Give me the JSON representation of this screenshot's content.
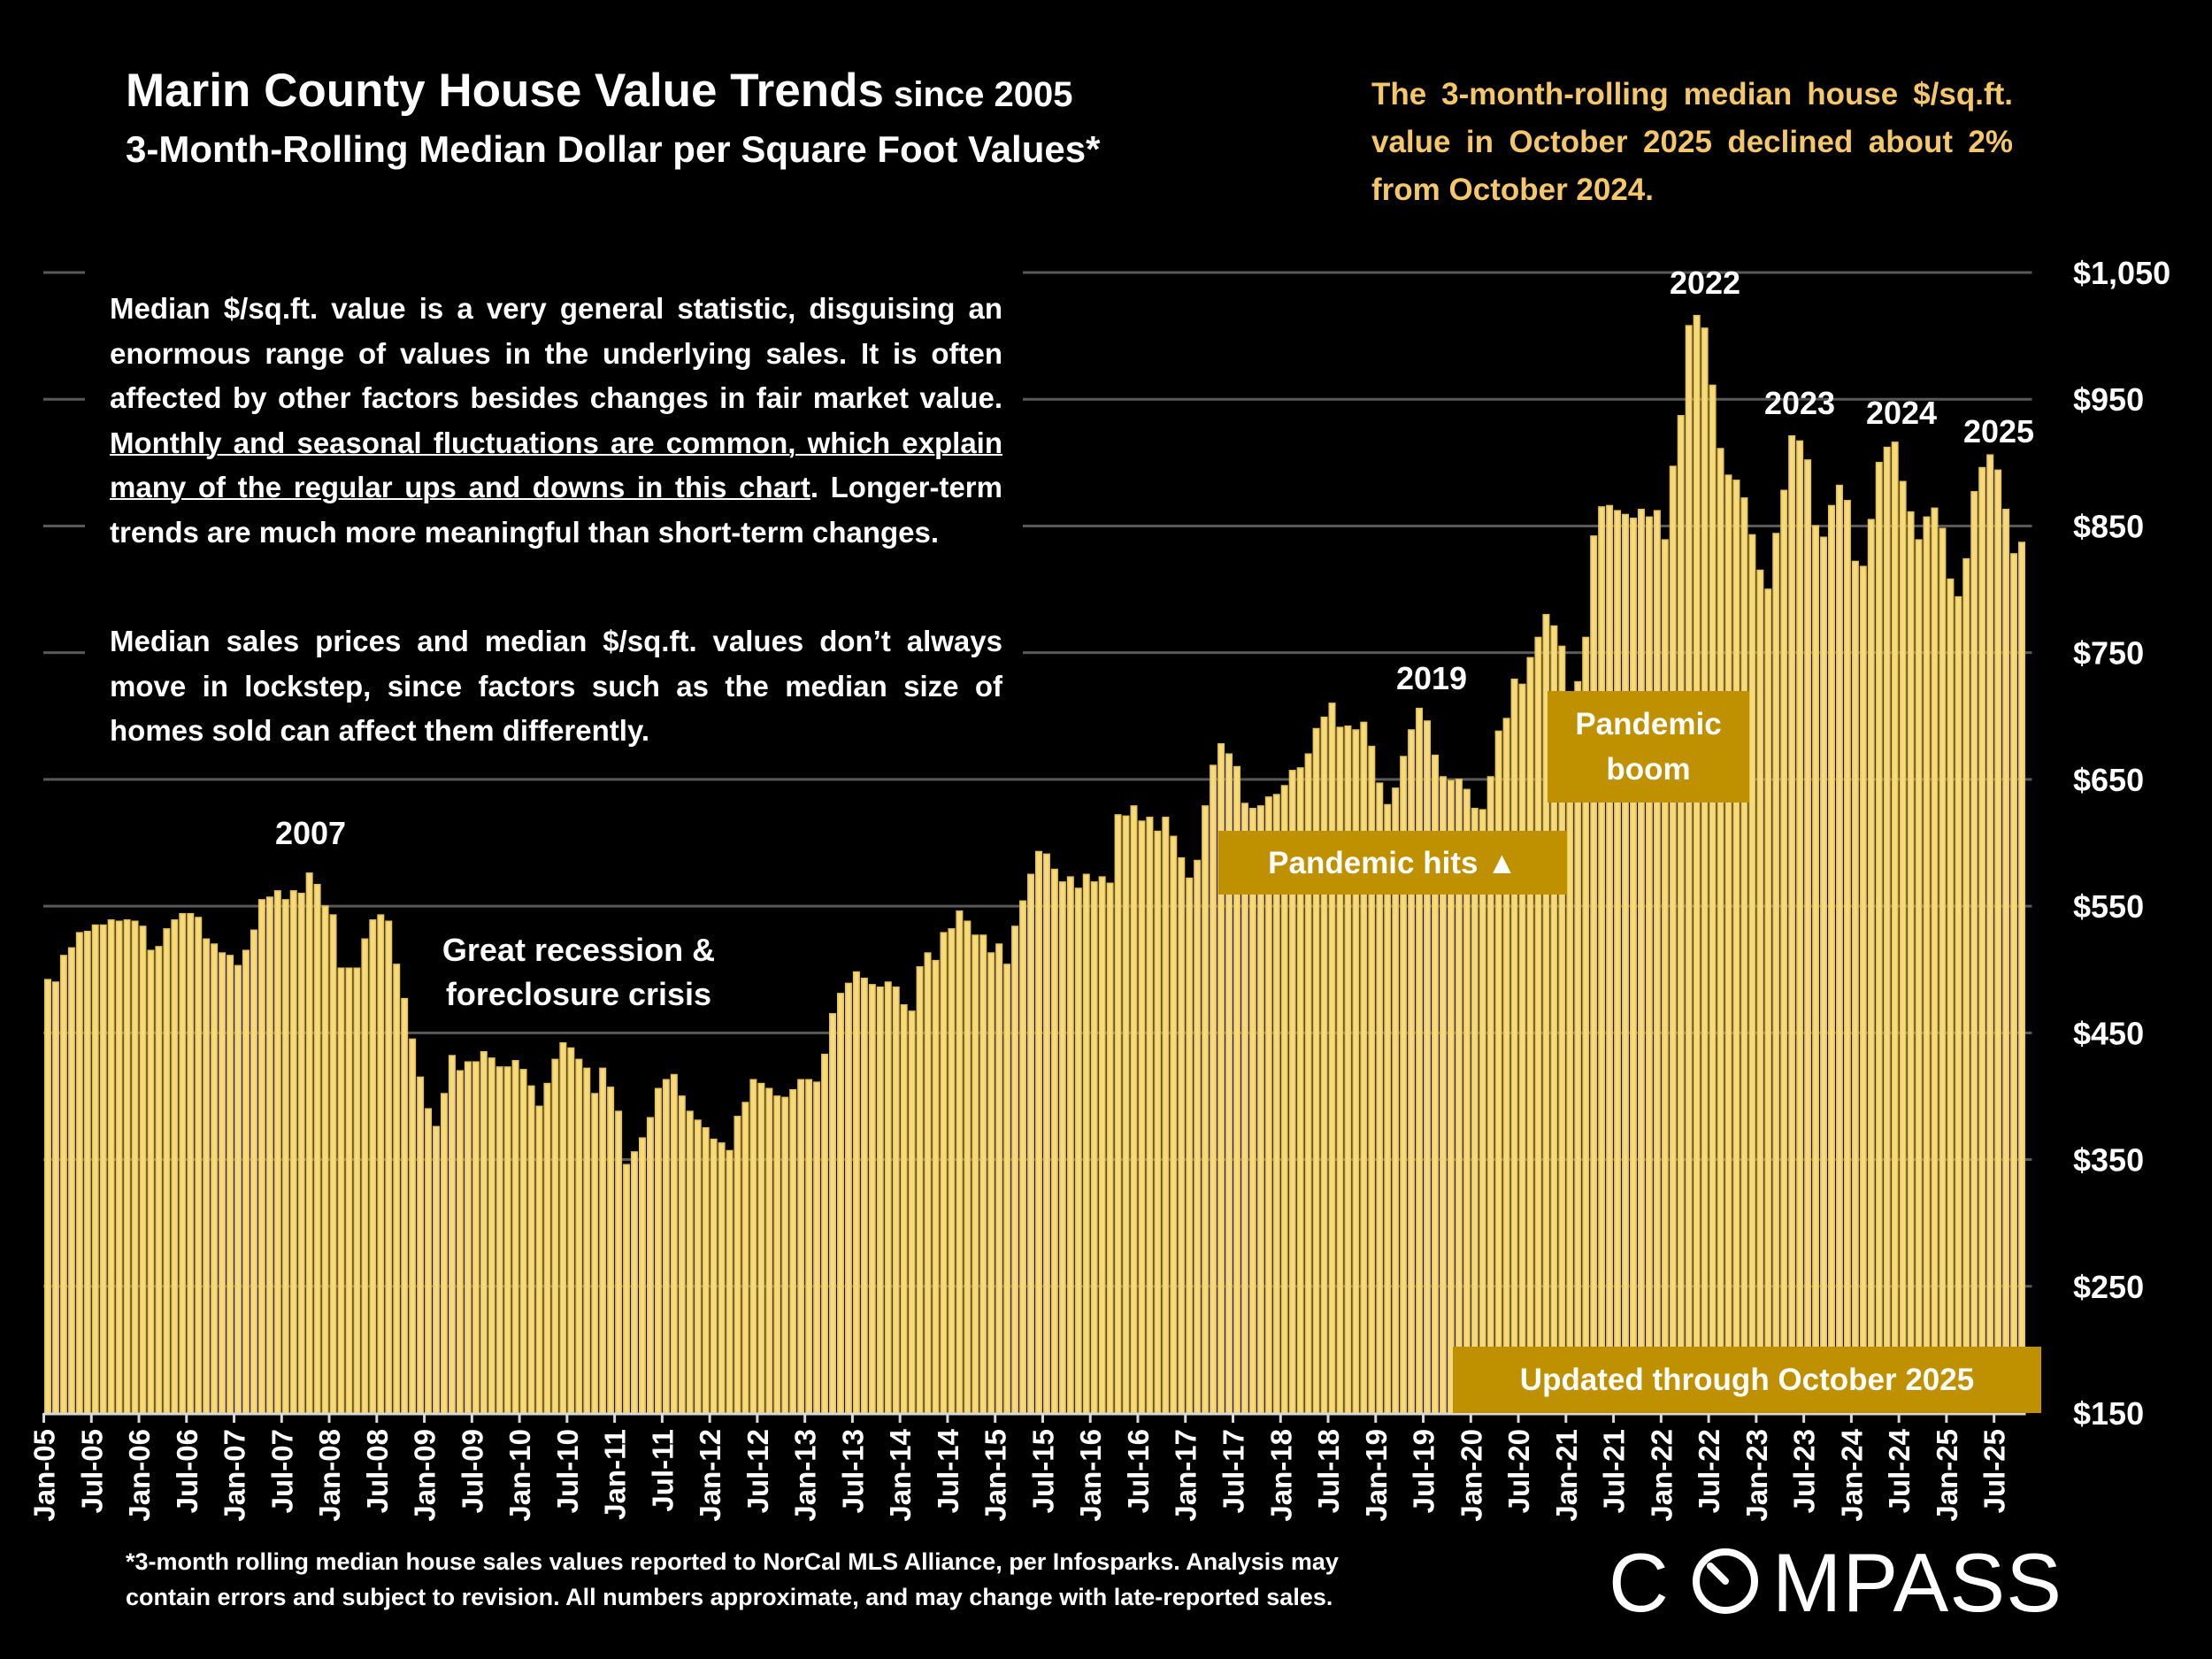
{
  "header": {
    "title_main": "Marin County House Value Trends",
    "title_suffix": " since 2005",
    "subtitle": "3-Month-Rolling Median Dollar per Square Foot Values*",
    "summary": "The 3-month-rolling median house $/sq.ft. value in October 2025 declined about 2% from October 2024."
  },
  "notes": {
    "p1_before": "Median $/sq.ft. value is a very general statistic, disguising an enormous range of values in the underlying sales. It is often affected by other factors besides changes in fair market value. ",
    "p1_underlined": "Monthly and seasonal fluctuations are common, which explain many of the regular ups and downs in this chart",
    "p1_after": ". Longer-term trends are much more meaningful than short-term changes.",
    "p2": "Median sales prices and median $/sq.ft. values don’t always move in lockstep, since factors such as the median size of homes sold can affect them differently."
  },
  "annotations": {
    "y2007": "2007",
    "recession_line1": "Great recession &",
    "recession_line2": "foreclosure crisis",
    "y2019": "2019",
    "y2022": "2022",
    "y2023": "2023",
    "y2024": "2024",
    "y2025": "2025",
    "pandemic_hits": "Pandemic hits ▲",
    "pandemic_boom_line1": "Pandemic",
    "pandemic_boom_line2": "boom",
    "updated": "Updated through October 2025"
  },
  "footnote": {
    "line1": "*3-month rolling median house sales values reported to NorCal MLS Alliance, per Infosparks. Analysis may",
    "line2": "contain errors and subject to revision. All numbers approximate, and may change with late-reported sales."
  },
  "logo": "COMPASS",
  "colors": {
    "background": "#000000",
    "bar_fill": "#f6da7c",
    "bar_stroke": "#e6c45a",
    "annotation_box": "#bf9000",
    "summary_text": "#f4c76b",
    "gridline": "#595959"
  },
  "chart_data": {
    "type": "bar",
    "title": "Marin County House Value Trends since 2005",
    "subtitle": "3-Month-Rolling Median Dollar per Square Foot Values*",
    "xlabel": "",
    "ylabel": "",
    "ylim": [
      150,
      1050
    ],
    "y_ticks": [
      150,
      250,
      350,
      450,
      550,
      650,
      750,
      850,
      950,
      1050
    ],
    "y_tick_labels": [
      "$150",
      "$250",
      "$350",
      "$450",
      "$550",
      "$650",
      "$750",
      "$850",
      "$950",
      "$1,050"
    ],
    "y_axis_position": "right",
    "grid": true,
    "tick_label_every": 6,
    "categories": [
      "Jan-05",
      "Feb-05",
      "Mar-05",
      "Apr-05",
      "May-05",
      "Jun-05",
      "Jul-05",
      "Aug-05",
      "Sep-05",
      "Oct-05",
      "Nov-05",
      "Dec-05",
      "Jan-06",
      "Feb-06",
      "Mar-06",
      "Apr-06",
      "May-06",
      "Jun-06",
      "Jul-06",
      "Aug-06",
      "Sep-06",
      "Oct-06",
      "Nov-06",
      "Dec-06",
      "Jan-07",
      "Feb-07",
      "Mar-07",
      "Apr-07",
      "May-07",
      "Jun-07",
      "Jul-07",
      "Aug-07",
      "Sep-07",
      "Oct-07",
      "Nov-07",
      "Dec-07",
      "Jan-08",
      "Feb-08",
      "Mar-08",
      "Apr-08",
      "May-08",
      "Jun-08",
      "Jul-08",
      "Aug-08",
      "Sep-08",
      "Oct-08",
      "Nov-08",
      "Dec-08",
      "Jan-09",
      "Feb-09",
      "Mar-09",
      "Apr-09",
      "May-09",
      "Jun-09",
      "Jul-09",
      "Aug-09",
      "Sep-09",
      "Oct-09",
      "Nov-09",
      "Dec-09",
      "Jan-10",
      "Feb-10",
      "Mar-10",
      "Apr-10",
      "May-10",
      "Jun-10",
      "Jul-10",
      "Aug-10",
      "Sep-10",
      "Oct-10",
      "Nov-10",
      "Dec-10",
      "Jan-11",
      "Feb-11",
      "Mar-11",
      "Apr-11",
      "May-11",
      "Jun-11",
      "Jul-11",
      "Aug-11",
      "Sep-11",
      "Oct-11",
      "Nov-11",
      "Dec-11",
      "Jan-12",
      "Feb-12",
      "Mar-12",
      "Apr-12",
      "May-12",
      "Jun-12",
      "Jul-12",
      "Aug-12",
      "Sep-12",
      "Oct-12",
      "Nov-12",
      "Dec-12",
      "Jan-13",
      "Feb-13",
      "Mar-13",
      "Apr-13",
      "May-13",
      "Jun-13",
      "Jul-13",
      "Aug-13",
      "Sep-13",
      "Oct-13",
      "Nov-13",
      "Dec-13",
      "Jan-14",
      "Feb-14",
      "Mar-14",
      "Apr-14",
      "May-14",
      "Jun-14",
      "Jul-14",
      "Aug-14",
      "Sep-14",
      "Oct-14",
      "Nov-14",
      "Dec-14",
      "Jan-15",
      "Feb-15",
      "Mar-15",
      "Apr-15",
      "May-15",
      "Jun-15",
      "Jul-15",
      "Aug-15",
      "Sep-15",
      "Oct-15",
      "Nov-15",
      "Dec-15",
      "Jan-16",
      "Feb-16",
      "Mar-16",
      "Apr-16",
      "May-16",
      "Jun-16",
      "Jul-16",
      "Aug-16",
      "Sep-16",
      "Oct-16",
      "Nov-16",
      "Dec-16",
      "Jan-17",
      "Feb-17",
      "Mar-17",
      "Apr-17",
      "May-17",
      "Jun-17",
      "Jul-17",
      "Aug-17",
      "Sep-17",
      "Oct-17",
      "Nov-17",
      "Dec-17",
      "Jan-18",
      "Feb-18",
      "Mar-18",
      "Apr-18",
      "May-18",
      "Jun-18",
      "Jul-18",
      "Aug-18",
      "Sep-18",
      "Oct-18",
      "Nov-18",
      "Dec-18",
      "Jan-19",
      "Feb-19",
      "Mar-19",
      "Apr-19",
      "May-19",
      "Jun-19",
      "Jul-19",
      "Aug-19",
      "Sep-19",
      "Oct-19",
      "Nov-19",
      "Dec-19",
      "Jan-20",
      "Feb-20",
      "Mar-20",
      "Apr-20",
      "May-20",
      "Jun-20",
      "Jul-20",
      "Aug-20",
      "Sep-20",
      "Oct-20",
      "Nov-20",
      "Dec-20",
      "Jan-21",
      "Feb-21",
      "Mar-21",
      "Apr-21",
      "May-21",
      "Jun-21",
      "Jul-21",
      "Aug-21",
      "Sep-21",
      "Oct-21",
      "Nov-21",
      "Dec-21",
      "Jan-22",
      "Feb-22",
      "Mar-22",
      "Apr-22",
      "May-22",
      "Jun-22",
      "Jul-22",
      "Aug-22",
      "Sep-22",
      "Oct-22",
      "Nov-22",
      "Dec-22",
      "Jan-23",
      "Feb-23",
      "Mar-23",
      "Apr-23",
      "May-23",
      "Jun-23",
      "Jul-23",
      "Aug-23",
      "Sep-23",
      "Oct-23",
      "Nov-23",
      "Dec-23",
      "Jan-24",
      "Feb-24",
      "Mar-24",
      "Apr-24",
      "May-24",
      "Jun-24",
      "Jul-24",
      "Aug-24",
      "Sep-24",
      "Oct-24",
      "Nov-24",
      "Dec-24",
      "Jan-25",
      "Feb-25",
      "Mar-25",
      "Apr-25",
      "May-25",
      "Jun-25",
      "Jul-25",
      "Aug-25",
      "Sep-25",
      "Oct-25"
    ],
    "values": [
      492,
      490,
      511,
      517,
      529,
      530,
      535,
      535,
      539,
      538,
      539,
      538,
      534,
      515,
      518,
      532,
      539,
      544,
      544,
      541,
      524,
      520,
      513,
      511,
      503,
      515,
      531,
      555,
      557,
      562,
      555,
      562,
      560,
      576,
      567,
      550,
      543,
      501,
      501,
      501,
      524,
      539,
      543,
      538,
      504,
      477,
      445,
      415,
      390,
      376,
      402,
      432,
      420,
      427,
      427,
      435,
      430,
      423,
      423,
      428,
      421,
      408,
      392,
      410,
      429,
      442,
      438,
      429,
      422,
      402,
      422,
      407,
      388,
      346,
      356,
      367,
      383,
      406,
      413,
      417,
      400,
      388,
      381,
      375,
      366,
      363,
      357,
      384,
      395,
      413,
      410,
      406,
      400,
      399,
      405,
      413,
      413,
      411,
      433,
      465,
      481,
      489,
      498,
      493,
      488,
      486,
      490,
      486,
      472,
      467,
      502,
      513,
      507,
      529,
      532,
      546,
      538,
      527,
      527,
      513,
      520,
      504,
      534,
      554,
      575,
      593,
      591,
      579,
      569,
      573,
      564,
      575,
      569,
      573,
      568,
      622,
      621,
      629,
      617,
      620,
      609,
      620,
      605,
      588,
      572,
      586,
      629,
      661,
      678,
      670,
      660,
      631,
      627,
      629,
      636,
      638,
      645,
      657,
      659,
      670,
      690,
      699,
      710,
      691,
      692,
      689,
      695,
      676,
      647,
      630,
      643,
      668,
      689,
      706,
      696,
      669,
      652,
      649,
      650,
      642,
      627,
      626,
      652,
      688,
      698,
      729,
      725,
      746,
      762,
      780,
      771,
      755,
      715,
      727,
      762,
      842,
      865,
      866,
      862,
      859,
      856,
      863,
      857,
      862,
      839,
      897,
      937,
      1008,
      1016,
      1006,
      961,
      911,
      890,
      886,
      872,
      843,
      815,
      800,
      844,
      878,
      921,
      917,
      902,
      850,
      841,
      866,
      882,
      870,
      822,
      818,
      855,
      900,
      912,
      916,
      885,
      861,
      839,
      857,
      864,
      848,
      808,
      794,
      824,
      877,
      896,
      906,
      894,
      863,
      828,
      837
    ]
  }
}
